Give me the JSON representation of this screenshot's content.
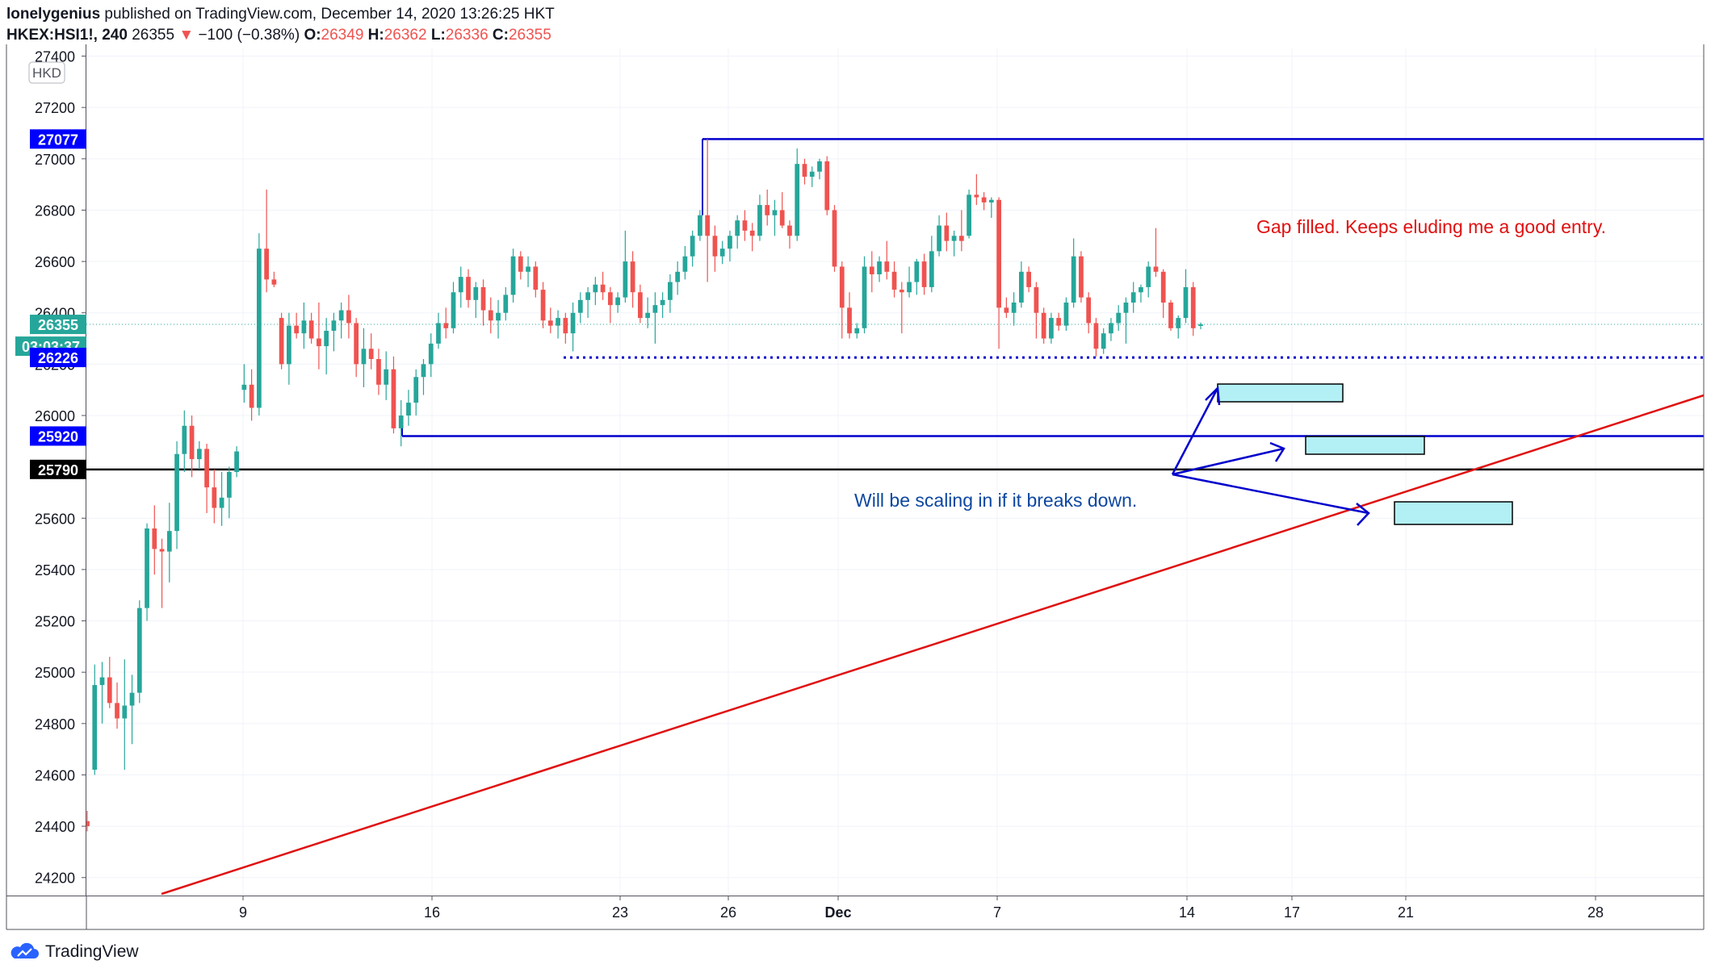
{
  "header": {
    "author": "lonelygenius",
    "published": "published on TradingView.com, December 14, 2020 13:26:25 HKT",
    "symbol": "HKEX:HSI1!, 240",
    "last": "26355",
    "change_arrow": "▼",
    "change": "−100 (−0.38%)",
    "open_label": "O:",
    "open": "26349",
    "high_label": "H:",
    "high": "26362",
    "low_label": "L:",
    "low": "26336",
    "close_label": "C:",
    "close": "26355"
  },
  "footer": {
    "brand": "TradingView",
    "logo_icon": "tradingview-cloud-icon"
  },
  "colors": {
    "up": "#26a69a",
    "down": "#ef5350",
    "blue_line": "#0000cc",
    "trend": "#e01010",
    "black_line": "#000000",
    "box_fill": "#b2f0f5",
    "note_red": "#e01010",
    "note_blue": "#0d47a1",
    "grid": "#f0f3fa",
    "axis_text": "#131722"
  },
  "chart_data": {
    "type": "candlestick",
    "currency": "HKD",
    "ylim": [
      24130,
      27430
    ],
    "y_ticks": [
      24200,
      24400,
      24600,
      24800,
      25000,
      25200,
      25400,
      25600,
      25800,
      26000,
      26200,
      26400,
      26600,
      26800,
      27000,
      27200,
      27400
    ],
    "x_ticks": [
      "9",
      "16",
      "23",
      "26",
      "Dec",
      "7",
      "14",
      "17",
      "21",
      "28"
    ],
    "grid": true,
    "price_labels": [
      {
        "value": 27077,
        "text": "27077",
        "bg": "#0000ff"
      },
      {
        "value": 26355,
        "text": "26355",
        "bg": "#26a69a"
      },
      {
        "value": 26270,
        "text": "03:03:37",
        "bg": "#26a69a"
      },
      {
        "value": 26226,
        "text": "26226",
        "bg": "#0000ff"
      },
      {
        "value": 25920,
        "text": "25920",
        "bg": "#0000ff"
      },
      {
        "value": 25790,
        "text": "25790",
        "bg": "#000000"
      }
    ],
    "levels": [
      {
        "name": "resistance",
        "value": 27077,
        "style": "solid"
      },
      {
        "name": "gap-level",
        "value": 26226,
        "style": "dotted"
      },
      {
        "name": "support",
        "value": 25920,
        "style": "solid"
      },
      {
        "name": "key-level",
        "value": 25790,
        "style": "solid"
      },
      {
        "name": "last-price",
        "value": 26355,
        "style": "dotted"
      }
    ],
    "annotations": [
      {
        "text": "Gap filled. Keeps eluding me a good entry.",
        "color": "red"
      },
      {
        "text": "Will be scaling in if it breaks down.",
        "color": "blue"
      }
    ],
    "candles": [
      [
        24420,
        24460,
        24380,
        24400
      ],
      [
        24620,
        25030,
        24600,
        24950
      ],
      [
        24950,
        25040,
        24800,
        24980
      ],
      [
        24980,
        25060,
        24860,
        24880
      ],
      [
        24880,
        24960,
        24780,
        24820
      ],
      [
        24820,
        25050,
        24620,
        24870
      ],
      [
        24870,
        24990,
        24720,
        24920
      ],
      [
        24920,
        25280,
        24880,
        25250
      ],
      [
        25250,
        25580,
        25200,
        25560
      ],
      [
        25560,
        25650,
        25380,
        25480
      ],
      [
        25480,
        25520,
        25250,
        25470
      ],
      [
        25470,
        25660,
        25350,
        25550
      ],
      [
        25550,
        25900,
        25480,
        25850
      ],
      [
        25850,
        26020,
        25780,
        25960
      ],
      [
        25960,
        26000,
        25760,
        25830
      ],
      [
        25830,
        25900,
        25790,
        25870
      ],
      [
        25870,
        25890,
        25620,
        25720
      ],
      [
        25720,
        25790,
        25580,
        25640
      ],
      [
        25640,
        25780,
        25570,
        25680
      ],
      [
        25680,
        25800,
        25600,
        25780
      ],
      [
        25780,
        25880,
        25760,
        25860
      ],
      [
        26100,
        26200,
        26050,
        26120
      ],
      [
        26120,
        26180,
        25980,
        26030
      ],
      [
        26030,
        26710,
        26000,
        26650
      ],
      [
        26650,
        26880,
        26480,
        26530
      ],
      [
        26530,
        26560,
        26500,
        26510
      ],
      [
        26380,
        26400,
        26180,
        26200
      ],
      [
        26200,
        26400,
        26120,
        26350
      ],
      [
        26350,
        26400,
        26300,
        26320
      ],
      [
        26320,
        26440,
        26260,
        26370
      ],
      [
        26370,
        26400,
        26280,
        26300
      ],
      [
        26300,
        26440,
        26180,
        26270
      ],
      [
        26270,
        26380,
        26160,
        26330
      ],
      [
        26330,
        26400,
        26250,
        26370
      ],
      [
        26370,
        26440,
        26300,
        26410
      ],
      [
        26410,
        26470,
        26300,
        26360
      ],
      [
        26360,
        26380,
        26150,
        26200
      ],
      [
        26200,
        26340,
        26110,
        26260
      ],
      [
        26260,
        26320,
        26180,
        26220
      ],
      [
        26220,
        26260,
        26080,
        26120
      ],
      [
        26120,
        26250,
        26060,
        26180
      ],
      [
        26180,
        26230,
        25930,
        25950
      ],
      [
        25950,
        26060,
        25880,
        26000
      ],
      [
        26000,
        26100,
        25960,
        26050
      ],
      [
        26050,
        26180,
        26000,
        26150
      ],
      [
        26150,
        26220,
        26080,
        26200
      ],
      [
        26200,
        26320,
        26150,
        26280
      ],
      [
        26280,
        26400,
        26260,
        26360
      ],
      [
        26360,
        26420,
        26300,
        26340
      ],
      [
        26340,
        26520,
        26320,
        26480
      ],
      [
        26480,
        26580,
        26420,
        26540
      ],
      [
        26540,
        26570,
        26420,
        26450
      ],
      [
        26450,
        26520,
        26380,
        26500
      ],
      [
        26500,
        26530,
        26350,
        26410
      ],
      [
        26410,
        26460,
        26320,
        26370
      ],
      [
        26370,
        26450,
        26300,
        26400
      ],
      [
        26400,
        26500,
        26370,
        26470
      ],
      [
        26470,
        26650,
        26440,
        26620
      ],
      [
        26620,
        26640,
        26530,
        26560
      ],
      [
        26560,
        26620,
        26500,
        26580
      ],
      [
        26580,
        26600,
        26460,
        26490
      ],
      [
        26490,
        26520,
        26340,
        26370
      ],
      [
        26370,
        26420,
        26320,
        26350
      ],
      [
        26350,
        26410,
        26300,
        26380
      ],
      [
        26380,
        26400,
        26280,
        26320
      ],
      [
        26320,
        26440,
        26250,
        26400
      ],
      [
        26400,
        26480,
        26360,
        26450
      ],
      [
        26450,
        26500,
        26380,
        26480
      ],
      [
        26480,
        26540,
        26430,
        26510
      ],
      [
        26510,
        26560,
        26450,
        26480
      ],
      [
        26480,
        26500,
        26360,
        26430
      ],
      [
        26430,
        26480,
        26400,
        26460
      ],
      [
        26460,
        26720,
        26440,
        26600
      ],
      [
        26600,
        26640,
        26420,
        26480
      ],
      [
        26480,
        26510,
        26360,
        26380
      ],
      [
        26380,
        26460,
        26340,
        26400
      ],
      [
        26400,
        26480,
        26280,
        26430
      ],
      [
        26430,
        26480,
        26380,
        26450
      ],
      [
        26450,
        26550,
        26400,
        26520
      ],
      [
        26520,
        26600,
        26470,
        26560
      ],
      [
        26560,
        26660,
        26530,
        26620
      ],
      [
        26620,
        26720,
        26580,
        26700
      ],
      [
        26700,
        26800,
        26680,
        26780
      ],
      [
        26780,
        27077,
        26520,
        26700
      ],
      [
        26700,
        26740,
        26560,
        26620
      ],
      [
        26620,
        26680,
        26590,
        26650
      ],
      [
        26650,
        26720,
        26600,
        26700
      ],
      [
        26700,
        26780,
        26650,
        26760
      ],
      [
        26760,
        26800,
        26680,
        26720
      ],
      [
        26720,
        26750,
        26640,
        26700
      ],
      [
        26700,
        26860,
        26680,
        26820
      ],
      [
        26820,
        26880,
        26740,
        26780
      ],
      [
        26780,
        26840,
        26700,
        26800
      ],
      [
        26800,
        26870,
        26730,
        26740
      ],
      [
        26740,
        26760,
        26650,
        26700
      ],
      [
        26700,
        27040,
        26680,
        26980
      ],
      [
        26980,
        27000,
        26900,
        26930
      ],
      [
        26930,
        26970,
        26890,
        26950
      ],
      [
        26950,
        27000,
        26920,
        26990
      ],
      [
        26990,
        27010,
        26780,
        26800
      ],
      [
        26800,
        26820,
        26560,
        26580
      ],
      [
        26580,
        26600,
        26300,
        26420
      ],
      [
        26420,
        26480,
        26300,
        26320
      ],
      [
        26320,
        26360,
        26300,
        26340
      ],
      [
        26340,
        26620,
        26320,
        26580
      ],
      [
        26580,
        26640,
        26480,
        26550
      ],
      [
        26550,
        26620,
        26520,
        26600
      ],
      [
        26600,
        26680,
        26530,
        26560
      ],
      [
        26560,
        26600,
        26460,
        26490
      ],
      [
        26490,
        26520,
        26320,
        26480
      ],
      [
        26480,
        26580,
        26460,
        26520
      ],
      [
        26520,
        26610,
        26470,
        26600
      ],
      [
        26600,
        26630,
        26470,
        26500
      ],
      [
        26500,
        26700,
        26480,
        26640
      ],
      [
        26640,
        26780,
        26620,
        26740
      ],
      [
        26740,
        26790,
        26640,
        26680
      ],
      [
        26680,
        26720,
        26620,
        26700
      ],
      [
        26700,
        26800,
        26640,
        26680
      ],
      [
        26700,
        26880,
        26690,
        26860
      ],
      [
        26860,
        26940,
        26820,
        26850
      ],
      [
        26850,
        26870,
        26800,
        26830
      ],
      [
        26830,
        26850,
        26770,
        26840
      ],
      [
        26840,
        26850,
        26260,
        26420
      ],
      [
        26420,
        26460,
        26380,
        26400
      ],
      [
        26400,
        26480,
        26350,
        26440
      ],
      [
        26440,
        26600,
        26420,
        26560
      ],
      [
        26560,
        26580,
        26480,
        26500
      ],
      [
        26500,
        26520,
        26300,
        26400
      ],
      [
        26400,
        26420,
        26280,
        26300
      ],
      [
        26300,
        26400,
        26280,
        26380
      ],
      [
        26380,
        26400,
        26330,
        26350
      ],
      [
        26350,
        26460,
        26330,
        26440
      ],
      [
        26440,
        26690,
        26420,
        26620
      ],
      [
        26620,
        26640,
        26440,
        26460
      ],
      [
        26460,
        26480,
        26320,
        26360
      ],
      [
        26360,
        26380,
        26230,
        26260
      ],
      [
        26260,
        26340,
        26240,
        26320
      ],
      [
        26320,
        26380,
        26290,
        26360
      ],
      [
        26360,
        26430,
        26330,
        26400
      ],
      [
        26400,
        26460,
        26280,
        26440
      ],
      [
        26440,
        26520,
        26400,
        26480
      ],
      [
        26480,
        26510,
        26440,
        26500
      ],
      [
        26500,
        26600,
        26460,
        26580
      ],
      [
        26580,
        26730,
        26540,
        26560
      ],
      [
        26560,
        26570,
        26380,
        26440
      ],
      [
        26440,
        26450,
        26330,
        26340
      ],
      [
        26340,
        26390,
        26300,
        26380
      ],
      [
        26380,
        26570,
        26360,
        26500
      ],
      [
        26500,
        26520,
        26310,
        26340
      ],
      [
        26349,
        26362,
        26336,
        26355
      ]
    ]
  },
  "axis": {
    "currency_badge": "HKD"
  }
}
